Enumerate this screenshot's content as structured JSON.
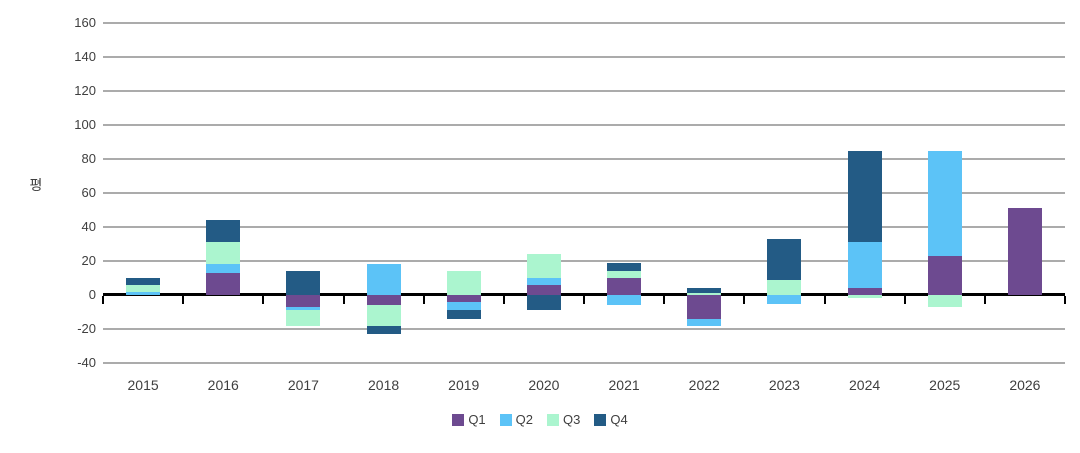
{
  "chart_data": {
    "type": "bar",
    "subtype": "stacked-column",
    "title": "",
    "xlabel": "",
    "ylabel": "평",
    "categories": [
      "2015",
      "2016",
      "2017",
      "2018",
      "2019",
      "2020",
      "2021",
      "2022",
      "2023",
      "2024",
      "2025",
      "2026"
    ],
    "series": [
      {
        "name": "Q1",
        "color": "#6d4a90",
        "values": [
          0,
          13,
          -7,
          -6,
          -4,
          6,
          10,
          -14,
          0,
          4,
          23,
          51
        ]
      },
      {
        "name": "Q2",
        "color": "#5cc3f7",
        "values": [
          2,
          5,
          -2,
          18,
          -5,
          4,
          -6,
          -4,
          -5,
          27,
          62,
          0
        ]
      },
      {
        "name": "Q3",
        "color": "#abf5cf",
        "values": [
          4,
          13,
          -9,
          -12,
          14,
          14,
          4,
          1,
          9,
          -2,
          -7,
          0
        ]
      },
      {
        "name": "Q4",
        "color": "#235b85",
        "values": [
          4,
          13,
          14,
          -5,
          -5,
          -9,
          5,
          3,
          24,
          54,
          0,
          0
        ]
      }
    ],
    "ylim": [
      -40,
      160
    ],
    "ytick_step": 20,
    "yticks": [
      "160",
      "140",
      "120",
      "100",
      "80",
      "60",
      "40",
      "20",
      "0",
      "-20",
      "-40"
    ],
    "grid": true,
    "legend_position": "bottom",
    "colors": {
      "gridline": "#ababab",
      "axis": "#000000",
      "text": "#3f3f3f",
      "background": "#ffffff"
    }
  }
}
